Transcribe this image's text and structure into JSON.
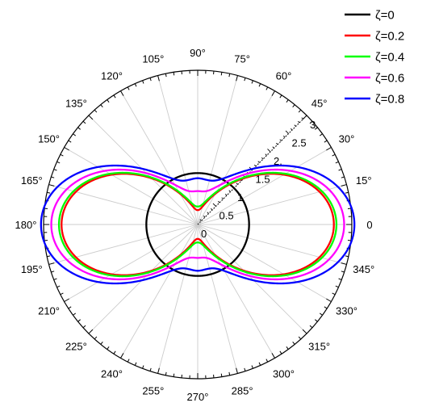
{
  "chart_data": {
    "type": "polar-line",
    "title": "",
    "radial_axis": {
      "range": [
        0,
        3
      ],
      "ticks": [
        0,
        0.5,
        1,
        1.5,
        2,
        2.5,
        3
      ],
      "tick_labels": [
        "0",
        "0.5",
        "1",
        "1.5",
        "2.",
        "2.5",
        "3."
      ],
      "label_angle_deg": 45
    },
    "angular_axis": {
      "ticks_deg": [
        0,
        15,
        30,
        45,
        60,
        75,
        90,
        105,
        120,
        135,
        150,
        165,
        180,
        195,
        210,
        225,
        240,
        255,
        270,
        285,
        300,
        315,
        330,
        345
      ],
      "tick_labels": [
        "0",
        "15°",
        "30°",
        "45°",
        "60°",
        "75°",
        "90°",
        "105°",
        "120°",
        "135°",
        "150°",
        "165°",
        "180°",
        "195°",
        "210°",
        "225°",
        "240°",
        "255°",
        "270°",
        "285°",
        "300°",
        "315°",
        "330°",
        "345°"
      ]
    },
    "grid": true,
    "legend_position": "top-right",
    "series": [
      {
        "name": "ζ=0",
        "color": "#000000",
        "lateral_peak": 1.0,
        "vertical_peak": 1.0
      },
      {
        "name": "ζ=0.2",
        "color": "#ff0000",
        "lateral_peak": 2.65,
        "vertical_peak": 0.28
      },
      {
        "name": "ζ=0.4",
        "color": "#00ff00",
        "lateral_peak": 2.7,
        "vertical_peak": 0.35
      },
      {
        "name": "ζ=0.6",
        "color": "#ff00ff",
        "lateral_peak": 2.85,
        "vertical_peak": 0.65
      },
      {
        "name": "ζ=0.8",
        "color": "#0000ff",
        "lateral_peak": 3.05,
        "vertical_peak": 0.9
      }
    ]
  }
}
